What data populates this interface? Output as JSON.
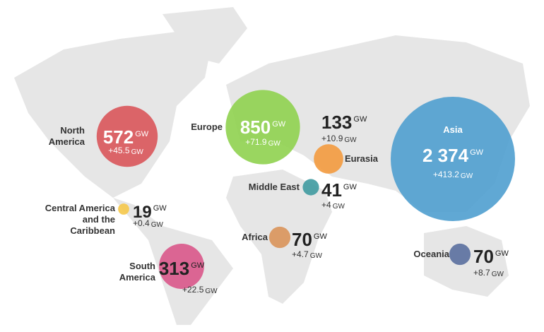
{
  "unit": "GW",
  "regions": [
    {
      "name": "North America",
      "capacity": 572,
      "change": "+45.5",
      "color": "#d9555a"
    },
    {
      "name": "Europe",
      "capacity": 850,
      "change": "+71.9",
      "color": "#8fd14f"
    },
    {
      "name": "Eurasia",
      "capacity": 133,
      "change": "+10.9",
      "color": "#f39a3e"
    },
    {
      "name": "Middle East",
      "capacity": 41,
      "change": "+4",
      "color": "#3f9aa0"
    },
    {
      "name": "Asia",
      "capacity": 2374,
      "capacity_label": "2 374",
      "change": "+413.2",
      "color": "#4f9fcf"
    },
    {
      "name": "Central America and the Caribbean",
      "capacity": 19,
      "change": "+0.4",
      "color": "#f5c84a"
    },
    {
      "name": "Africa",
      "capacity": 70,
      "change": "+4.7",
      "color": "#d9935a"
    },
    {
      "name": "South America",
      "capacity": 313,
      "change": "+22.5",
      "color": "#d9578a"
    },
    {
      "name": "Oceania",
      "capacity": 70,
      "change": "+8.7",
      "color": "#5a6f9e"
    }
  ]
}
